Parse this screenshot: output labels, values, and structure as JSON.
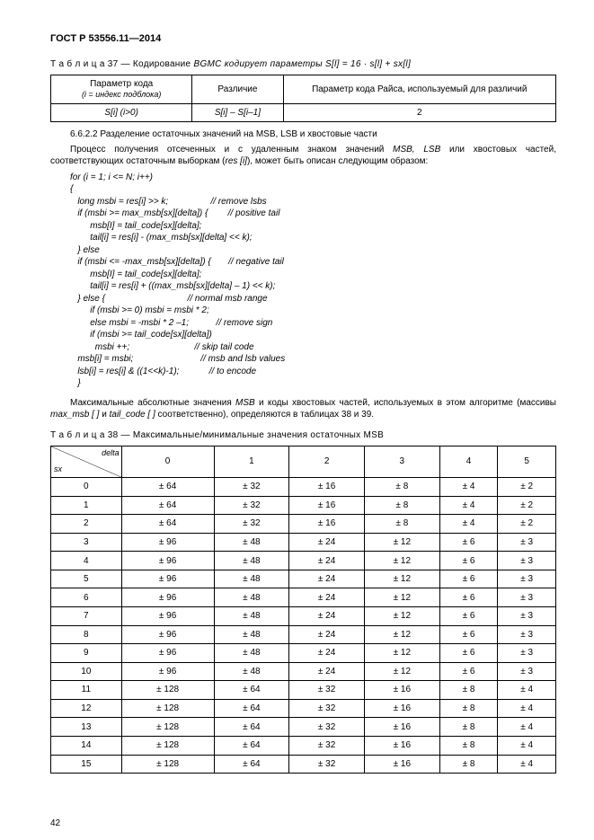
{
  "header": "ГОСТ Р 53556.11—2014",
  "table37": {
    "caption_prefix": "Т а б л и ц а  37 — Кодирование ",
    "caption_mid": "BGMC",
    "caption_tail": " кодирует параметры S[l] = 16 · s[l] + sx[l]",
    "h1": "Параметр кода",
    "h1b": "(i = индекс подблока)",
    "h2": "Различие",
    "h3": "Параметр кода Райса, используемый для различий",
    "r_c1": "S[i] (i>0)",
    "r_c2": "S[i] – S[i–1]",
    "r_c3": "2"
  },
  "sec": {
    "title": "6.6.2.2 Разделение остаточных значений на MSB, LSB и хвостовые части",
    "p1a": "Процесс получения отсеченных и с удаленным знаком значений ",
    "p1b": "MSB, LSB",
    "p1c": " или хвостовых частей, соответствующих остаточным выборкам (",
    "p1d": "res [i]",
    "p1e": "), может быть описан следующим образом:"
  },
  "code_lines": [
    {
      "c": "for (i = 1; i <= N; i++)",
      "cm": ""
    },
    {
      "c": "{",
      "cm": ""
    },
    {
      "c": "   long msbi = res[i] >> k;",
      "cm": "// remove lsbs"
    },
    {
      "c": "   if (msbi >= max_msb[sx][delta]) {",
      "cm": "// positive tail"
    },
    {
      "c": "        msb[I] = tail_code[sx][delta];",
      "cm": ""
    },
    {
      "c": "        tail[i] = res[i] - (max_msb[sx][delta] << k);",
      "cm": ""
    },
    {
      "c": "   } else",
      "cm": ""
    },
    {
      "c": "   if (msbi <= -max_msb[sx][delta]) {",
      "cm": "// negative tail"
    },
    {
      "c": "        msb[I] = tail_code[sx][delta];",
      "cm": ""
    },
    {
      "c": "        tail[i] = res[i] + ((max_msb[sx][delta] – 1) << k);",
      "cm": ""
    },
    {
      "c": "   } else {",
      "cm": "// normal msb range"
    },
    {
      "c": "        if (msbi >= 0) msbi = msbi * 2;",
      "cm": ""
    },
    {
      "c": "        else msbi = -msbi * 2 –1;",
      "cm": "// remove sign"
    },
    {
      "c": "        if (msbi >= tail_code[sx][delta])",
      "cm": ""
    },
    {
      "c": "          msbi ++;",
      "cm": "// skip tail code"
    },
    {
      "c": "   msb[i] = msbi;",
      "cm": "// msb and lsb values"
    },
    {
      "c": "   lsb[i] = res[i] & ((1<<k)-1);",
      "cm": "// to encode"
    },
    {
      "c": "   }",
      "cm": ""
    }
  ],
  "para2a": "Максимальные абсолютные значения ",
  "para2b": "MSB",
  "para2c": " и коды хвостовых частей, используемых в этом алгоритме (массивы ",
  "para2d": "max_msb [ ]",
  "para2e": " и ",
  "para2f": "tail_code [ ]",
  "para2g": " соответственно), определяются в таблицах 38 и 39.",
  "table38": {
    "caption": "Т а б л и ц а  38 — Максимальные/минимальные значения остаточных MSB",
    "diag_r": "delta",
    "diag_l": "sx",
    "cols": [
      "0",
      "1",
      "2",
      "3",
      "4",
      "5"
    ],
    "rows": [
      {
        "k": "0",
        "v": [
          "± 64",
          "± 32",
          "± 16",
          "± 8",
          "± 4",
          "± 2"
        ]
      },
      {
        "k": "1",
        "v": [
          "± 64",
          "± 32",
          "± 16",
          "± 8",
          "± 4",
          "± 2"
        ]
      },
      {
        "k": "2",
        "v": [
          "± 64",
          "± 32",
          "± 16",
          "± 8",
          "± 4",
          "± 2"
        ]
      },
      {
        "k": "3",
        "v": [
          "± 96",
          "± 48",
          "± 24",
          "± 12",
          "± 6",
          "± 3"
        ]
      },
      {
        "k": "4",
        "v": [
          "± 96",
          "± 48",
          "± 24",
          "± 12",
          "± 6",
          "± 3"
        ]
      },
      {
        "k": "5",
        "v": [
          "± 96",
          "± 48",
          "± 24",
          "± 12",
          "± 6",
          "± 3"
        ]
      },
      {
        "k": "6",
        "v": [
          "± 96",
          "± 48",
          "± 24",
          "± 12",
          "± 6",
          "± 3"
        ]
      },
      {
        "k": "7",
        "v": [
          "± 96",
          "± 48",
          "± 24",
          "± 12",
          "± 6",
          "± 3"
        ]
      },
      {
        "k": "8",
        "v": [
          "± 96",
          "± 48",
          "± 24",
          "± 12",
          "± 6",
          "± 3"
        ]
      },
      {
        "k": "9",
        "v": [
          "± 96",
          "± 48",
          "± 24",
          "± 12",
          "± 6",
          "± 3"
        ]
      },
      {
        "k": "10",
        "v": [
          "± 96",
          "± 48",
          "± 24",
          "± 12",
          "± 6",
          "± 3"
        ]
      },
      {
        "k": "11",
        "v": [
          "± 128",
          "± 64",
          "± 32",
          "± 16",
          "± 8",
          "± 4"
        ]
      },
      {
        "k": "12",
        "v": [
          "± 128",
          "± 64",
          "± 32",
          "± 16",
          "± 8",
          "± 4"
        ]
      },
      {
        "k": "13",
        "v": [
          "± 128",
          "± 64",
          "± 32",
          "± 16",
          "± 8",
          "± 4"
        ]
      },
      {
        "k": "14",
        "v": [
          "± 128",
          "± 64",
          "± 32",
          "± 16",
          "± 8",
          "± 4"
        ]
      },
      {
        "k": "15",
        "v": [
          "± 128",
          "± 64",
          "± 32",
          "± 16",
          "± 8",
          "± 4"
        ]
      }
    ]
  },
  "pagenum": "42"
}
